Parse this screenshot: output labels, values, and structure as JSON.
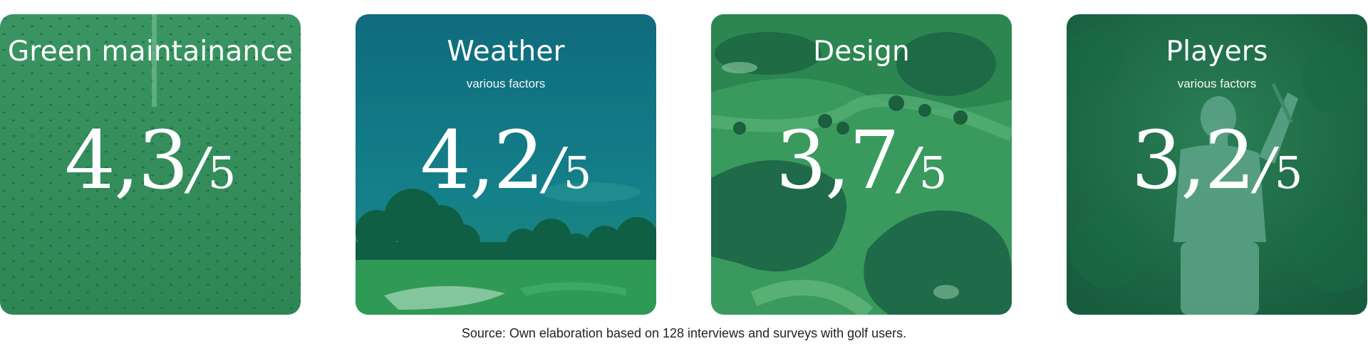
{
  "cards": [
    {
      "title": "Green maintainance",
      "subtitle": "",
      "score": "4,3",
      "slash": "/",
      "max": "5",
      "overlay_color": "#2f8a57",
      "image": "golf-ball-dimples-texture"
    },
    {
      "title": "Weather",
      "subtitle": "various factors",
      "score": "4,2",
      "slash": "/",
      "max": "5",
      "overlay_color": "#0f6f78",
      "image": "golf-course-trees-sky"
    },
    {
      "title": "Design",
      "subtitle": "",
      "score": "3,7",
      "slash": "/",
      "max": "5",
      "overlay_color": "#2f8a57",
      "image": "aerial-golf-course-lakes"
    },
    {
      "title": "Players",
      "subtitle": "various factors",
      "score": "3,2",
      "slash": "/",
      "max": "5",
      "overlay_color": "#1f6e4b",
      "image": "golfer-swinging"
    }
  ],
  "source_note": "Source: Own elaboration based on 128 interviews and surveys with golf users."
}
